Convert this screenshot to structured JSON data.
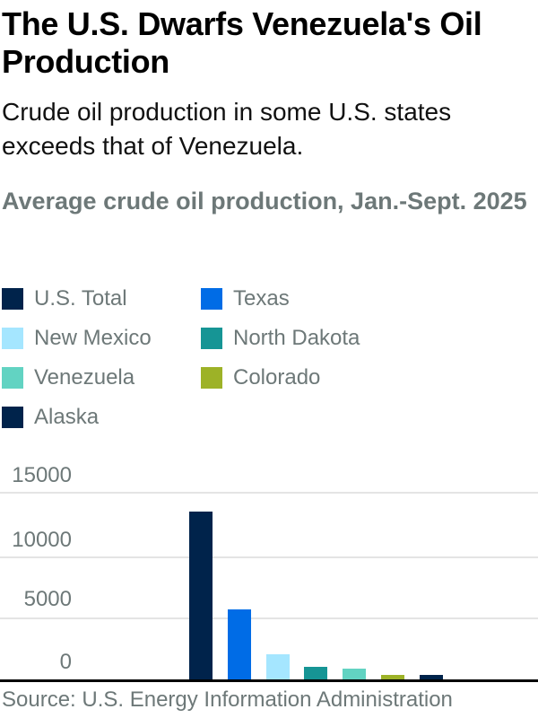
{
  "header": {
    "title": "The U.S. Dwarfs Venezuela's Oil Production",
    "subtitle": "Crude oil production in some U.S. states exceeds that of Venezuela.",
    "chart_title": "Average crude oil production, Jan.-Sept. 2025"
  },
  "legend": [
    {
      "label": "U.S. Total",
      "color": "#00234b"
    },
    {
      "label": "Texas",
      "color": "#006ce6"
    },
    {
      "label": "New Mexico",
      "color": "#a5e6ff"
    },
    {
      "label": "North Dakota",
      "color": "#169595"
    },
    {
      "label": "Venezuela",
      "color": "#62d3c2"
    },
    {
      "label": "Colorado",
      "color": "#9db227"
    },
    {
      "label": "Alaska",
      "color": "#00234b"
    }
  ],
  "y_axis": {
    "ticks": [
      "15000",
      "10000",
      "5000",
      "0"
    ]
  },
  "footer": {
    "source": "Source: U.S. Energy Information Administration"
  },
  "chart_data": {
    "type": "bar",
    "title": "Average crude oil production, Jan.-Sept. 2025",
    "subtitle": "Crude oil production in some U.S. states exceeds that of Venezuela.",
    "xlabel": "",
    "ylabel": "",
    "ylim": [
      0,
      15000
    ],
    "yticks": [
      0,
      5000,
      10000,
      15000
    ],
    "grid": true,
    "legend_position": "top",
    "values_note": "Values estimated from bar heights; no data labels shown on chart",
    "categories": [
      "U.S. Total",
      "Texas",
      "New Mexico",
      "North Dakota",
      "Venezuela",
      "Colorado",
      "Alaska"
    ],
    "values": [
      13500,
      5700,
      2100,
      1100,
      950,
      400,
      400
    ],
    "colors": [
      "#00234b",
      "#006ce6",
      "#a5e6ff",
      "#169595",
      "#62d3c2",
      "#9db227",
      "#00234b"
    ],
    "source": "Source: U.S. Energy Information Administration"
  }
}
